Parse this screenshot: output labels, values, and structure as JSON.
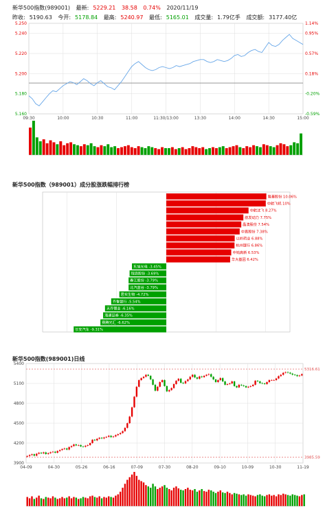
{
  "header": {
    "name": "新华500指数(989001)",
    "latest_label": "最新:",
    "latest_value": "5229.21",
    "change": "38.58",
    "change_pct": "0.74%",
    "date": "2020/11/19",
    "prev_close_label": "昨收:",
    "prev_close": "5190.63",
    "open_label": "今开:",
    "open": "5178.84",
    "high_label": "最高:",
    "high": "5240.97",
    "low_label": "最低:",
    "low": "5165.01",
    "volume_label": "成交量:",
    "volume": "1.79亿手",
    "amount_label": "成交额:",
    "amount": "3177.40亿"
  },
  "colors": {
    "up": "#e60000",
    "down": "#00a000",
    "line": "#66a6e8",
    "grid": "#dddddd",
    "avg": "#888888",
    "limit": "#e05050"
  },
  "intraday_title": "",
  "ranking_title": "新华500指数（989001）成分股涨跌幅排行榜",
  "daily_title": "新华500指数(989001)日线",
  "chart_data": [
    {
      "type": "line",
      "title": "",
      "ylim": [
        5160,
        5250
      ],
      "y_ticks": [
        "5.250",
        "5.240",
        "5.220",
        "5.200",
        "5.180",
        "5.160"
      ],
      "y_tick_values": [
        5250,
        5240,
        5220,
        5200,
        5180,
        5160
      ],
      "right_ticks": [
        "1.14%",
        "0.95%",
        "0.57%",
        "0.18%",
        "-0.20%",
        "-0.59%"
      ],
      "x_ticks": [
        "09:30",
        "10:00",
        "10:30",
        "11:00",
        "11:30/13:00",
        "13:30",
        "14:00",
        "14:30",
        "15:00"
      ],
      "prev_close": 5190.63,
      "series": [
        {
          "values": [
            5178,
            5175,
            5170,
            5168,
            5172,
            5176,
            5180,
            5183,
            5182,
            5185,
            5188,
            5190,
            5192,
            5191,
            5189,
            5192,
            5195,
            5193,
            5190,
            5188,
            5191,
            5193,
            5190,
            5187,
            5186,
            5184,
            5188,
            5192,
            5197,
            5202,
            5207,
            5210,
            5212,
            5209,
            5206,
            5204,
            5203,
            5204,
            5206,
            5207,
            5206,
            5205,
            5206,
            5208,
            5207,
            5208,
            5209,
            5210,
            5212,
            5213,
            5214,
            5214,
            5212,
            5211,
            5212,
            5214,
            5213,
            5212,
            5213,
            5215,
            5218,
            5219,
            5217,
            5218,
            5221,
            5223,
            5224,
            5222,
            5221,
            5226,
            5231,
            5228,
            5227,
            5229,
            5233,
            5236,
            5239,
            5235,
            5233,
            5231,
            5229
          ]
        }
      ],
      "volume": [
        28,
        35,
        18,
        14,
        16,
        12,
        15,
        13,
        11,
        14,
        10,
        12,
        13,
        11,
        10,
        9,
        11,
        10,
        12,
        9,
        8,
        10,
        9,
        11,
        8,
        9,
        7,
        8,
        9,
        10,
        8,
        7,
        9,
        8,
        7,
        9,
        8,
        7,
        6,
        8,
        7,
        7,
        8,
        6,
        7,
        8,
        6,
        7,
        9,
        8,
        7,
        8,
        6,
        7,
        8,
        7,
        8,
        9,
        7,
        8,
        9,
        10,
        8,
        7,
        9,
        8,
        10,
        9,
        8,
        11,
        10,
        9,
        8,
        10,
        12,
        11,
        9,
        10,
        13,
        12,
        22
      ]
    },
    {
      "type": "bar",
      "title": "新华500指数（989001）成分股涨跌幅排行榜",
      "categories": [
        "隆基股份 10.06%",
        "中航飞机 10%",
        "中航沈飞 8.27%",
        "航发动力 7.75%",
        "晶澳股份 7.54%",
        "中直股份 7.38%",
        "以岭药业 6.88%",
        "杭州银行 6.86%",
        "中钨高新 6.53%",
        "华大基因 6.42%",
        "东旭光电 -3.45%",
        "锦浪股份 -3.69%",
        "春江股份 -3.79%",
        "北汽蓝谷 -3.79%",
        "君实生物 -4.72%",
        "齐鲁银行 -5.54%",
        "天齐锂业 -6.16%",
        "海通证券 -6.35%",
        "赛腾光汇 -6.62%",
        "长安汽车 -9.31%"
      ],
      "values": [
        10.06,
        10.0,
        8.27,
        7.75,
        7.54,
        7.38,
        6.88,
        6.86,
        6.53,
        6.42,
        -3.45,
        -3.69,
        -3.79,
        -3.79,
        -4.72,
        -5.54,
        -6.16,
        -6.35,
        -6.62,
        -9.31
      ],
      "xlim": [
        -10.5,
        10.5
      ]
    },
    {
      "type": "line",
      "title": "新华500指数(989001)日线",
      "ylim": [
        3900,
        5400
      ],
      "y_ticks": [
        "5400",
        "5100",
        "4800",
        "4500",
        "4200",
        "3900"
      ],
      "y_tick_values": [
        5400,
        5100,
        4800,
        4500,
        4200,
        3900
      ],
      "x_ticks": [
        "04-09",
        "04-30",
        "05-26",
        "06-16",
        "07-09",
        "07-30",
        "08-20",
        "09-10",
        "10-09",
        "10-30",
        "11-19"
      ],
      "max_label": "5316.61",
      "max_value": 5316.61,
      "min_label": "3985.59",
      "min_value": 3985.59,
      "closes": [
        4005,
        4020,
        4032,
        4010,
        4040,
        4055,
        4045,
        4060,
        4035,
        4048,
        4062,
        4070,
        4055,
        4080,
        4095,
        4110,
        4120,
        4102,
        4140,
        4155,
        4180,
        4165,
        4170,
        4150,
        4145,
        4160,
        4170,
        4200,
        4250,
        4240,
        4265,
        4280,
        4270,
        4285,
        4295,
        4310,
        4290,
        4300,
        4320,
        4335,
        4352,
        4380,
        4430,
        4500,
        4600,
        4740,
        4900,
        5050,
        5150,
        5180,
        5200,
        5230,
        5215,
        5160,
        5080,
        4990,
        5050,
        5120,
        5150,
        5060,
        4980,
        5000,
        5030,
        5090,
        5140,
        5170,
        5110,
        5100,
        5135,
        5160,
        5200,
        5230,
        5190,
        5170,
        5205,
        5195,
        5215,
        5230,
        5240,
        5200,
        5160,
        5120,
        5150,
        5180,
        5130,
        5080,
        5090,
        5100,
        5130,
        5060,
        5040,
        5080,
        5070,
        5060,
        5040,
        5050,
        5060,
        5080,
        5140,
        5130,
        5105,
        5100,
        5090,
        5120,
        5150,
        5150,
        5150,
        5175,
        5210,
        5230,
        5260,
        5270,
        5262,
        5248,
        5232,
        5226,
        5210,
        5220,
        5240
      ],
      "volume": [
        14,
        12,
        15,
        11,
        13,
        16,
        12,
        11,
        14,
        13,
        12,
        15,
        13,
        11,
        12,
        14,
        12,
        13,
        15,
        12,
        14,
        13,
        11,
        12,
        14,
        13,
        12,
        15,
        16,
        14,
        13,
        15,
        12,
        14,
        13,
        15,
        14,
        13,
        16,
        18,
        22,
        28,
        34,
        40,
        44,
        48,
        52,
        46,
        40,
        38,
        36,
        32,
        30,
        28,
        34,
        30,
        26,
        28,
        30,
        32,
        28,
        26,
        24,
        28,
        30,
        27,
        25,
        24,
        26,
        28,
        25,
        24,
        26,
        22,
        24,
        26,
        23,
        22,
        25,
        24,
        22,
        20,
        22,
        24,
        21,
        20,
        22,
        20,
        18,
        20,
        19,
        18,
        17,
        18,
        16,
        18,
        17,
        16,
        15,
        17,
        18,
        16,
        15,
        17,
        18,
        16,
        17,
        15,
        18,
        17,
        19,
        18,
        17,
        16,
        18,
        17,
        16,
        15,
        17,
        18
      ]
    }
  ]
}
